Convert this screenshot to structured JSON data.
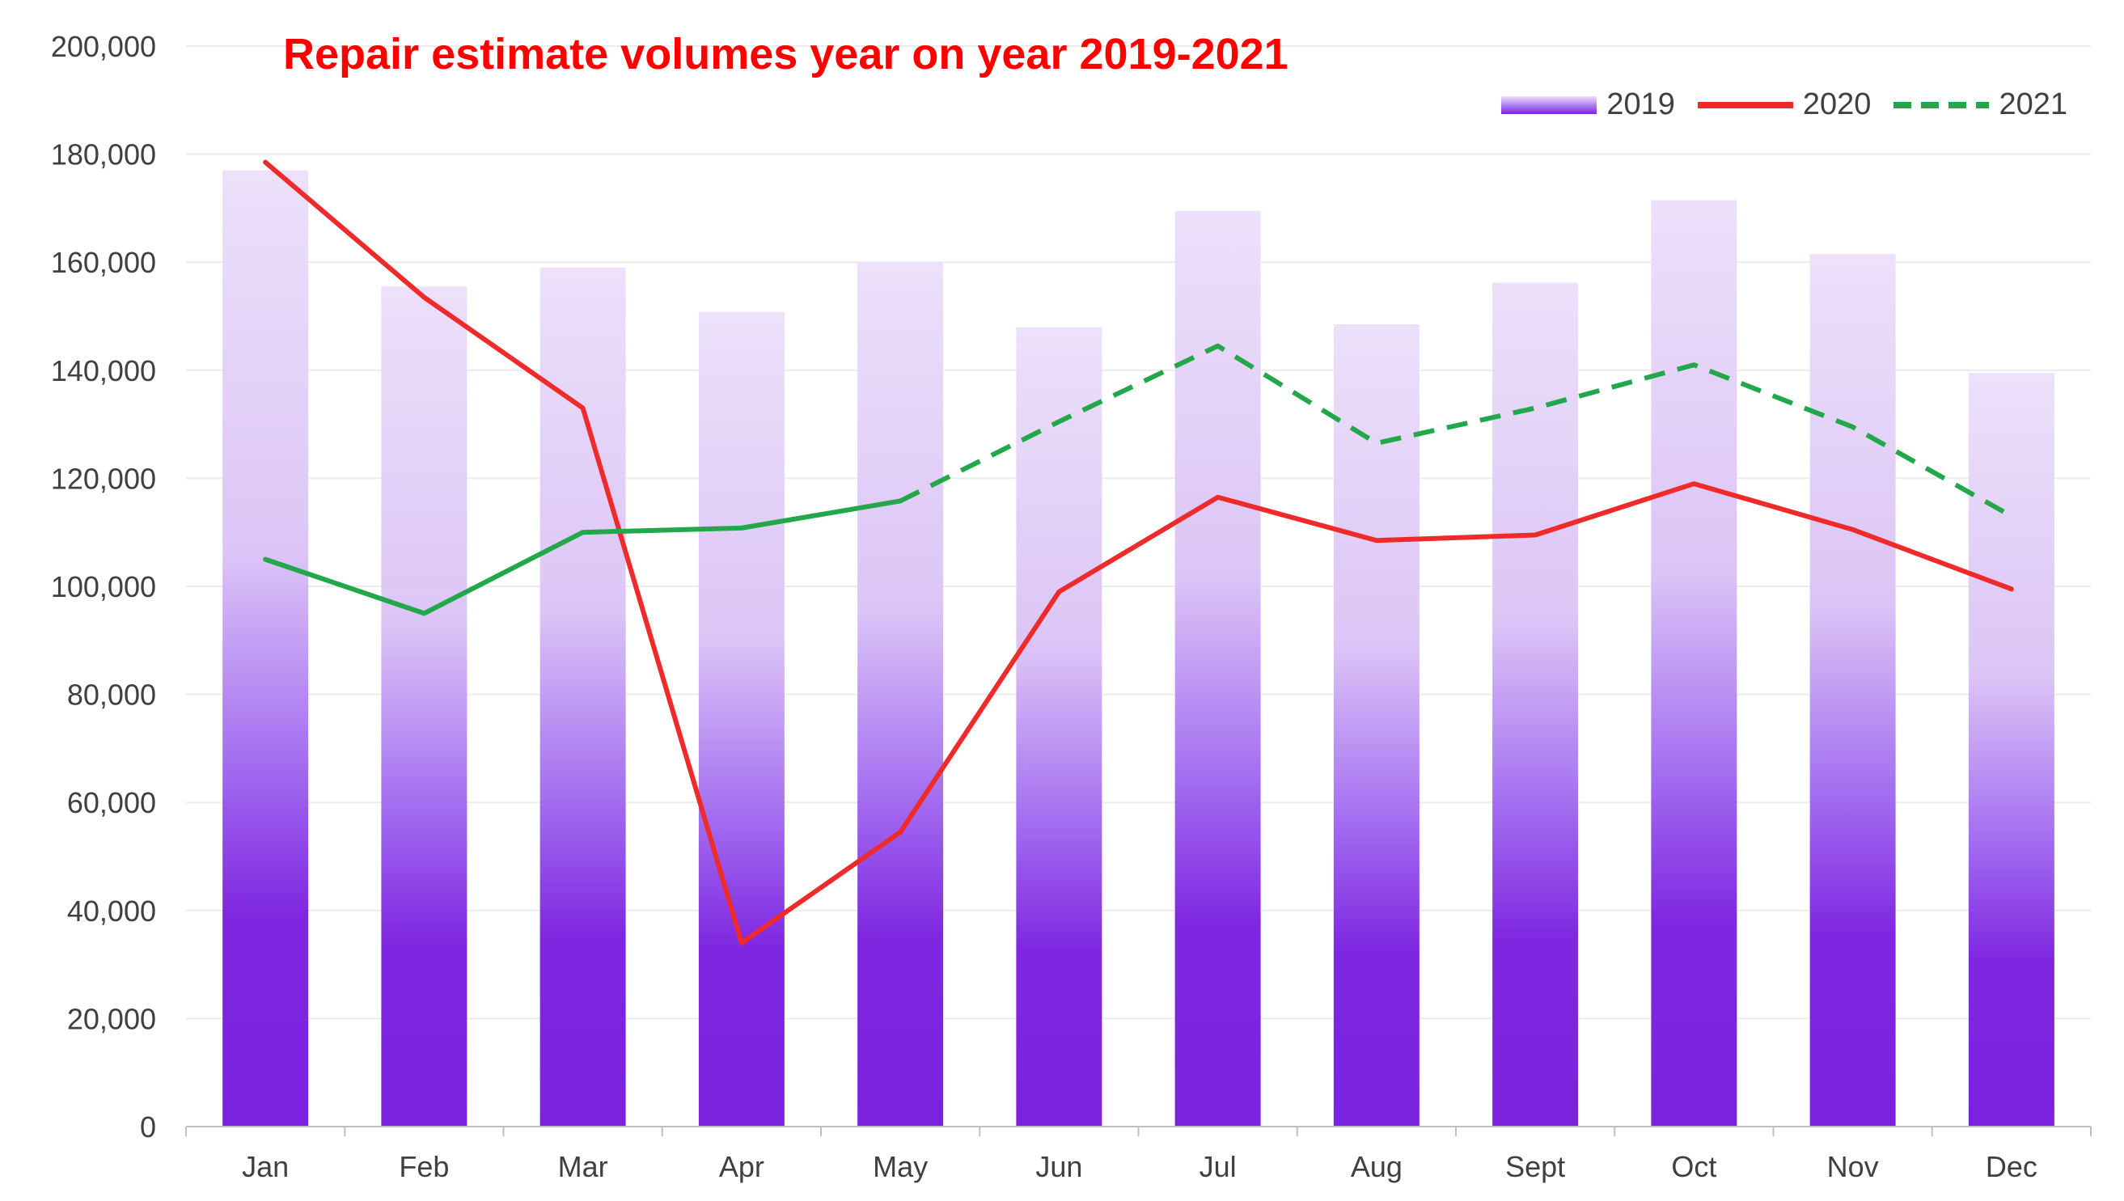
{
  "chart_data": {
    "type": "bar",
    "title": "Repair estimate volumes year on year 2019-2021",
    "xlabel": "",
    "ylabel": "",
    "categories": [
      "Jan",
      "Feb",
      "Mar",
      "Apr",
      "May",
      "Jun",
      "Jul",
      "Aug",
      "Sept",
      "Oct",
      "Nov",
      "Dec"
    ],
    "y_ticks": [
      "0",
      "20,000",
      "40,000",
      "60,000",
      "80,000",
      "100,000",
      "120,000",
      "140,000",
      "160,000",
      "180,000",
      "200,000"
    ],
    "ylim": [
      0,
      200000
    ],
    "grid": true,
    "legend_position": "top-right",
    "series": [
      {
        "name": "2019",
        "type": "bar",
        "color": "#7a22de",
        "values": [
          177000,
          155500,
          159000,
          150800,
          160000,
          148000,
          169500,
          148500,
          156200,
          171500,
          161500,
          139500
        ]
      },
      {
        "name": "2020",
        "type": "line",
        "color": "#ee2a2a",
        "style": "solid",
        "values": [
          178500,
          153500,
          133000,
          34000,
          54500,
          99000,
          116500,
          108500,
          109500,
          119000,
          110500,
          99500
        ]
      },
      {
        "name": "2021",
        "type": "line",
        "color": "#22a84a",
        "style": "solid to May, dashed after",
        "values": [
          105000,
          95000,
          110000,
          110800,
          115800,
          130500,
          144500,
          126500,
          133000,
          141000,
          129500,
          113000
        ]
      }
    ]
  }
}
